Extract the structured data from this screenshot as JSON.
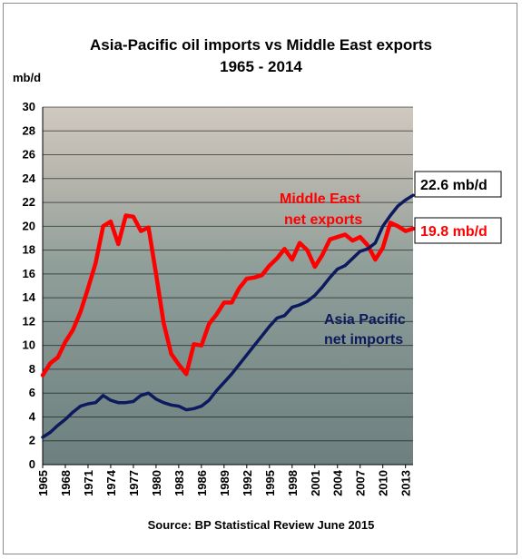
{
  "chart_data": {
    "type": "line",
    "title": "Asia-Pacific oil imports vs Middle East exports",
    "subtitle": "1965 - 2014",
    "ylabel": "mb/d",
    "xlabel": "",
    "ylim": [
      0,
      30
    ],
    "xlim": [
      1965,
      2014
    ],
    "grid": true,
    "yticks": [
      0,
      2,
      4,
      6,
      8,
      10,
      12,
      14,
      16,
      18,
      20,
      22,
      24,
      26,
      28,
      30
    ],
    "xticks": [
      "1965",
      "1968",
      "1971",
      "1974",
      "1977",
      "1980",
      "1983",
      "1986",
      "1989",
      "1992",
      "1995",
      "1998",
      "2001",
      "2004",
      "2007",
      "2010",
      "2013"
    ],
    "x": [
      1965,
      1966,
      1967,
      1968,
      1969,
      1970,
      1971,
      1972,
      1973,
      1974,
      1975,
      1976,
      1977,
      1978,
      1979,
      1980,
      1981,
      1982,
      1983,
      1984,
      1985,
      1986,
      1987,
      1988,
      1989,
      1990,
      1991,
      1992,
      1993,
      1994,
      1995,
      1996,
      1997,
      1998,
      1999,
      2000,
      2001,
      2002,
      2003,
      2004,
      2005,
      2006,
      2007,
      2008,
      2009,
      2010,
      2011,
      2012,
      2013,
      2014
    ],
    "series": [
      {
        "name": "Middle East net exports",
        "color": "#ff0000",
        "values": [
          7.5,
          8.5,
          9.0,
          10.3,
          11.3,
          12.8,
          14.8,
          16.9,
          20.0,
          20.4,
          18.5,
          20.9,
          20.8,
          19.6,
          19.9,
          16.0,
          11.9,
          9.3,
          8.4,
          7.6,
          10.1,
          10.0,
          11.8,
          12.6,
          13.6,
          13.6,
          14.8,
          15.6,
          15.7,
          15.9,
          16.7,
          17.3,
          18.1,
          17.2,
          18.6,
          18.0,
          16.6,
          17.6,
          18.9,
          19.1,
          19.3,
          18.8,
          19.1,
          18.4,
          17.2,
          18.2,
          20.3,
          20.0,
          19.6,
          19.8
        ]
      },
      {
        "name": "Asia Pacific net imports",
        "color": "#0d1a5e",
        "values": [
          2.3,
          2.7,
          3.3,
          3.8,
          4.4,
          4.9,
          5.1,
          5.2,
          5.8,
          5.4,
          5.2,
          5.2,
          5.3,
          5.8,
          6.0,
          5.5,
          5.2,
          5.0,
          4.9,
          4.6,
          4.7,
          4.9,
          5.4,
          6.2,
          6.9,
          7.6,
          8.4,
          9.2,
          10.0,
          10.8,
          11.6,
          12.3,
          12.5,
          13.2,
          13.4,
          13.7,
          14.2,
          14.9,
          15.7,
          16.4,
          16.7,
          17.3,
          17.9,
          18.1,
          18.6,
          20.0,
          20.9,
          21.7,
          22.2,
          22.6
        ]
      }
    ],
    "annotations": {
      "end_label_asia": "22.6 mb/d",
      "end_label_me": "19.8 mb/d",
      "me_series_label_line1": "Middle East",
      "me_series_label_line2": "net exports",
      "asia_series_label_line1": "Asia Pacific",
      "asia_series_label_line2": "net imports"
    },
    "source": "Source: BP Statistical Review June 2015"
  }
}
